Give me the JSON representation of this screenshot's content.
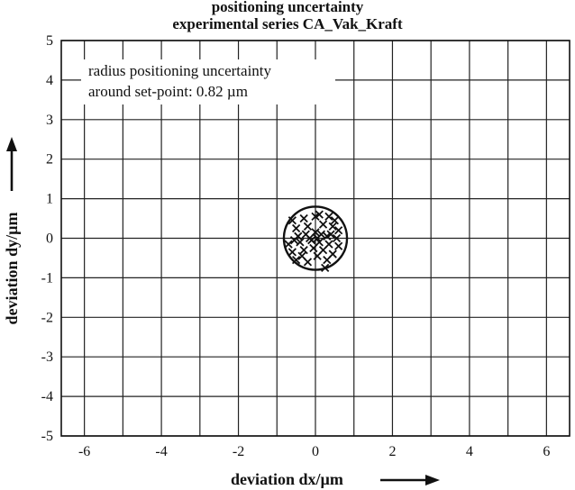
{
  "chart_data": {
    "type": "scatter",
    "title": "positioning uncertainty",
    "subtitle": "experimental series CA_Vak_Kraft",
    "xlabel": "deviation  dx/µm",
    "ylabel": "deviation dy/µm",
    "xlim": [
      -6.6,
      6.6
    ],
    "ylim": [
      -5,
      5
    ],
    "x_ticks": [
      -6,
      -4,
      -2,
      0,
      2,
      4,
      6
    ],
    "y_ticks": [
      5,
      4,
      3,
      2,
      1,
      0,
      -1,
      -2,
      -3,
      -4,
      -5
    ],
    "grid": true,
    "annotation_line1": "radius positioning uncertainty",
    "annotation_line2": "around set-point: 0.82 µm",
    "circle": {
      "center": [
        0,
        0
      ],
      "radius": 0.82
    },
    "marker": "x",
    "points": [
      [
        -0.6,
        0.45
      ],
      [
        -0.3,
        0.5
      ],
      [
        0.0,
        0.55
      ],
      [
        0.1,
        0.6
      ],
      [
        0.35,
        0.55
      ],
      [
        0.5,
        0.45
      ],
      [
        -0.5,
        0.25
      ],
      [
        -0.2,
        0.3
      ],
      [
        0.2,
        0.35
      ],
      [
        0.45,
        0.3
      ],
      [
        0.6,
        0.2
      ],
      [
        -0.45,
        0.05
      ],
      [
        -0.25,
        0.1
      ],
      [
        0.0,
        0.15
      ],
      [
        0.15,
        0.1
      ],
      [
        0.3,
        0.05
      ],
      [
        0.55,
        0.0
      ],
      [
        -0.7,
        -0.15
      ],
      [
        -0.4,
        -0.1
      ],
      [
        -0.1,
        -0.05
      ],
      [
        0.1,
        -0.1
      ],
      [
        0.35,
        -0.15
      ],
      [
        0.6,
        -0.2
      ],
      [
        -0.6,
        -0.35
      ],
      [
        -0.3,
        -0.3
      ],
      [
        -0.05,
        -0.25
      ],
      [
        0.2,
        -0.3
      ],
      [
        0.45,
        -0.4
      ],
      [
        -0.5,
        -0.55
      ],
      [
        -0.2,
        -0.6
      ],
      [
        0.05,
        -0.45
      ],
      [
        0.3,
        -0.55
      ],
      [
        0.25,
        -0.75
      ],
      [
        -0.15,
        0.0
      ],
      [
        0.05,
        0.0
      ],
      [
        -0.35,
        -0.45
      ],
      [
        0.4,
        0.1
      ],
      [
        -0.55,
        -0.05
      ]
    ]
  }
}
